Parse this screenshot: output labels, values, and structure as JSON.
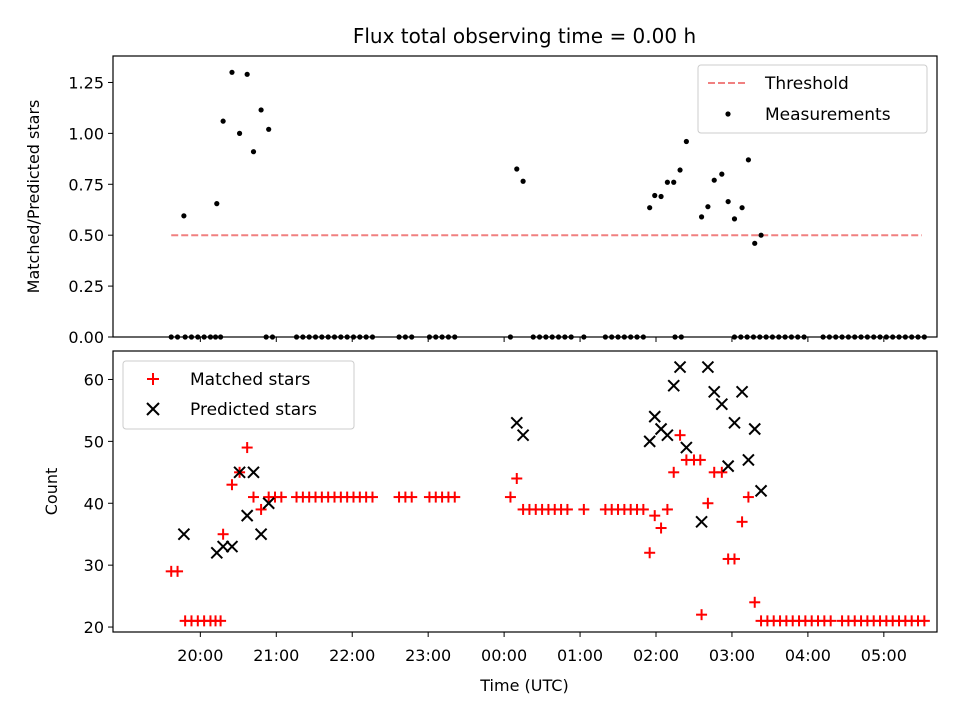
{
  "chart_data": [
    {
      "type": "scatter",
      "title": "Flux total observing time = 0.00 h",
      "ylabel": "Matched/Predicted stars",
      "xlabel": "",
      "x_unit": "minutes after 20:00 UTC",
      "xlim": [
        -69,
        582
      ],
      "ylim": [
        0,
        1.38
      ],
      "y_ticks": [
        "0.00",
        "0.25",
        "0.50",
        "0.75",
        "1.00",
        "1.25"
      ],
      "y_tick_values": [
        0,
        0.25,
        0.5,
        0.75,
        1.0,
        1.25
      ],
      "legend_position": "top-right",
      "series": [
        {
          "name": "Threshold",
          "kind": "dashed-line",
          "color": "#f08080",
          "points": [
            [
              -23,
              0.5
            ],
            [
              570,
              0.5
            ]
          ]
        },
        {
          "name": "Measurements",
          "kind": "dot",
          "color": "#000000",
          "points": [
            [
              -23,
              0
            ],
            [
              -18,
              0
            ],
            [
              -12,
              0
            ],
            [
              -7,
              0
            ],
            [
              -2,
              0
            ],
            [
              3,
              0
            ],
            [
              8,
              0
            ],
            [
              12,
              0
            ],
            [
              16,
              0
            ],
            [
              52,
              0
            ],
            [
              57,
              0
            ],
            [
              76,
              0
            ],
            [
              81,
              0
            ],
            [
              86,
              0
            ],
            [
              91,
              0
            ],
            [
              96,
              0
            ],
            [
              101,
              0
            ],
            [
              106,
              0
            ],
            [
              111,
              0
            ],
            [
              116,
              0
            ],
            [
              121,
              0
            ],
            [
              126,
              0
            ],
            [
              131,
              0
            ],
            [
              136,
              0
            ],
            [
              157,
              0
            ],
            [
              162,
              0
            ],
            [
              167,
              0
            ],
            [
              181,
              0
            ],
            [
              186,
              0
            ],
            [
              191,
              0
            ],
            [
              196,
              0
            ],
            [
              201,
              0
            ],
            [
              245,
              0
            ],
            [
              263,
              0
            ],
            [
              268,
              0
            ],
            [
              273,
              0
            ],
            [
              278,
              0
            ],
            [
              283,
              0
            ],
            [
              288,
              0
            ],
            [
              293,
              0
            ],
            [
              303,
              0
            ],
            [
              320,
              0
            ],
            [
              325,
              0
            ],
            [
              330,
              0
            ],
            [
              335,
              0
            ],
            [
              340,
              0
            ],
            [
              345,
              0
            ],
            [
              350,
              0
            ],
            [
              375,
              0
            ],
            [
              380,
              0
            ],
            [
              422,
              0
            ],
            [
              427,
              0
            ],
            [
              432,
              0
            ],
            [
              437,
              0
            ],
            [
              442,
              0
            ],
            [
              447,
              0
            ],
            [
              452,
              0
            ],
            [
              457,
              0
            ],
            [
              462,
              0
            ],
            [
              467,
              0
            ],
            [
              472,
              0
            ],
            [
              477,
              0
            ],
            [
              492,
              0
            ],
            [
              497,
              0
            ],
            [
              502,
              0
            ],
            [
              507,
              0
            ],
            [
              512,
              0
            ],
            [
              517,
              0
            ],
            [
              522,
              0
            ],
            [
              527,
              0
            ],
            [
              532,
              0
            ],
            [
              537,
              0
            ],
            [
              542,
              0
            ],
            [
              547,
              0
            ],
            [
              552,
              0
            ],
            [
              557,
              0
            ],
            [
              562,
              0
            ],
            [
              567,
              0
            ],
            [
              572,
              0
            ],
            [
              -13,
              0.595
            ],
            [
              13,
              0.655
            ],
            [
              18,
              1.06
            ],
            [
              25,
              1.3
            ],
            [
              31,
              1.0
            ],
            [
              37,
              1.29
            ],
            [
              42,
              0.91
            ],
            [
              48,
              1.115
            ],
            [
              54,
              1.02
            ],
            [
              250,
              0.825
            ],
            [
              255,
              0.765
            ],
            [
              355,
              0.635
            ],
            [
              359,
              0.695
            ],
            [
              364,
              0.69
            ],
            [
              369,
              0.76
            ],
            [
              374,
              0.76
            ],
            [
              379,
              0.82
            ],
            [
              384,
              0.96
            ],
            [
              396,
              0.59
            ],
            [
              401,
              0.64
            ],
            [
              406,
              0.77
            ],
            [
              412,
              0.8
            ],
            [
              417,
              0.665
            ],
            [
              422,
              0.58
            ],
            [
              428,
              0.635
            ],
            [
              433,
              0.87
            ],
            [
              438,
              0.46
            ],
            [
              443,
              0.5
            ]
          ]
        }
      ]
    },
    {
      "type": "scatter",
      "title": "",
      "ylabel": "Count",
      "xlabel": "Time (UTC)",
      "x_unit": "minutes after 20:00 UTC",
      "xlim": [
        -69,
        582
      ],
      "ylim": [
        19.2,
        64.6
      ],
      "y_ticks": [
        "20",
        "30",
        "40",
        "50",
        "60"
      ],
      "y_tick_values": [
        20,
        30,
        40,
        50,
        60
      ],
      "x_ticks": [
        "20:00",
        "21:00",
        "22:00",
        "23:00",
        "00:00",
        "01:00",
        "02:00",
        "03:00",
        "04:00",
        "05:00"
      ],
      "x_tick_values": [
        0,
        60,
        120,
        180,
        240,
        300,
        360,
        420,
        480,
        540
      ],
      "legend_position": "top-left",
      "series": [
        {
          "name": "Matched stars",
          "kind": "plus",
          "color": "#ff0000",
          "points": [
            [
              -23,
              29
            ],
            [
              -18,
              29
            ],
            [
              -12,
              21
            ],
            [
              -7,
              21
            ],
            [
              -2,
              21
            ],
            [
              3,
              21
            ],
            [
              8,
              21
            ],
            [
              12,
              21
            ],
            [
              16,
              21
            ],
            [
              18,
              35
            ],
            [
              25,
              43
            ],
            [
              31,
              45
            ],
            [
              37,
              49
            ],
            [
              42,
              41
            ],
            [
              48,
              39
            ],
            [
              54,
              41
            ],
            [
              59,
              41
            ],
            [
              64,
              41
            ],
            [
              76,
              41
            ],
            [
              81,
              41
            ],
            [
              86,
              41
            ],
            [
              91,
              41
            ],
            [
              96,
              41
            ],
            [
              101,
              41
            ],
            [
              106,
              41
            ],
            [
              111,
              41
            ],
            [
              116,
              41
            ],
            [
              121,
              41
            ],
            [
              126,
              41
            ],
            [
              131,
              41
            ],
            [
              136,
              41
            ],
            [
              157,
              41
            ],
            [
              162,
              41
            ],
            [
              167,
              41
            ],
            [
              181,
              41
            ],
            [
              186,
              41
            ],
            [
              191,
              41
            ],
            [
              196,
              41
            ],
            [
              201,
              41
            ],
            [
              245,
              41
            ],
            [
              250,
              44
            ],
            [
              255,
              39
            ],
            [
              260,
              39
            ],
            [
              265,
              39
            ],
            [
              270,
              39
            ],
            [
              275,
              39
            ],
            [
              280,
              39
            ],
            [
              285,
              39
            ],
            [
              290,
              39
            ],
            [
              303,
              39
            ],
            [
              320,
              39
            ],
            [
              325,
              39
            ],
            [
              330,
              39
            ],
            [
              335,
              39
            ],
            [
              340,
              39
            ],
            [
              345,
              39
            ],
            [
              350,
              39
            ],
            [
              355,
              32
            ],
            [
              359,
              38
            ],
            [
              364,
              36
            ],
            [
              369,
              39
            ],
            [
              374,
              45
            ],
            [
              379,
              51
            ],
            [
              384,
              47
            ],
            [
              390,
              47
            ],
            [
              395,
              47
            ],
            [
              396,
              22
            ],
            [
              401,
              40
            ],
            [
              406,
              45
            ],
            [
              412,
              45
            ],
            [
              417,
              31
            ],
            [
              422,
              31
            ],
            [
              428,
              37
            ],
            [
              433,
              41
            ],
            [
              438,
              24
            ],
            [
              443,
              21
            ],
            [
              448,
              21
            ],
            [
              453,
              21
            ],
            [
              458,
              21
            ],
            [
              463,
              21
            ],
            [
              468,
              21
            ],
            [
              473,
              21
            ],
            [
              478,
              21
            ],
            [
              483,
              21
            ],
            [
              488,
              21
            ],
            [
              493,
              21
            ],
            [
              498,
              21
            ],
            [
              507,
              21
            ],
            [
              512,
              21
            ],
            [
              517,
              21
            ],
            [
              522,
              21
            ],
            [
              527,
              21
            ],
            [
              532,
              21
            ],
            [
              537,
              21
            ],
            [
              542,
              21
            ],
            [
              547,
              21
            ],
            [
              552,
              21
            ],
            [
              557,
              21
            ],
            [
              562,
              21
            ],
            [
              567,
              21
            ],
            [
              572,
              21
            ]
          ]
        },
        {
          "name": "Predicted stars",
          "kind": "x",
          "color": "#000000",
          "points": [
            [
              -13,
              35
            ],
            [
              13,
              32
            ],
            [
              18,
              33
            ],
            [
              25,
              33
            ],
            [
              31,
              45
            ],
            [
              37,
              38
            ],
            [
              42,
              45
            ],
            [
              48,
              35
            ],
            [
              54,
              40
            ],
            [
              250,
              53
            ],
            [
              255,
              51
            ],
            [
              355,
              50
            ],
            [
              359,
              54
            ],
            [
              364,
              52
            ],
            [
              369,
              51
            ],
            [
              374,
              59
            ],
            [
              379,
              62
            ],
            [
              384,
              49
            ],
            [
              396,
              37
            ],
            [
              401,
              62
            ],
            [
              406,
              58
            ],
            [
              412,
              56
            ],
            [
              417,
              46
            ],
            [
              422,
              53
            ],
            [
              428,
              58
            ],
            [
              433,
              47
            ],
            [
              438,
              52
            ],
            [
              443,
              42
            ]
          ]
        }
      ]
    }
  ]
}
